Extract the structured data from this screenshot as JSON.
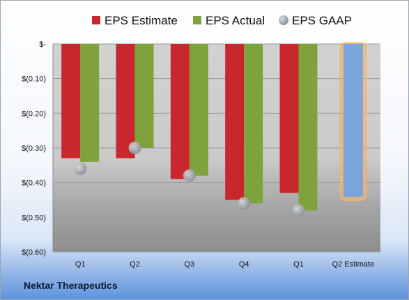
{
  "footer": {
    "company": "Nektar Therapeutics"
  },
  "chart_data": {
    "type": "bar",
    "categories": [
      "Q1",
      "Q2",
      "Q3",
      "Q4",
      "Q1",
      "Q2 Estimate"
    ],
    "series": [
      {
        "name": "EPS Estimate",
        "color": "#c8282d",
        "values": [
          -0.33,
          -0.33,
          -0.39,
          -0.45,
          -0.43,
          null
        ]
      },
      {
        "name": "EPS Actual",
        "color": "#7fa23c",
        "values": [
          -0.34,
          -0.3,
          -0.38,
          -0.46,
          -0.48,
          null
        ]
      },
      {
        "name": "EPS GAAP",
        "color": "#a9b0ba",
        "marker": "circle",
        "values": [
          -0.36,
          -0.3,
          -0.38,
          -0.46,
          -0.48,
          null
        ]
      }
    ],
    "forecast": {
      "category": "Q2 Estimate",
      "value": -0.44,
      "color": "#7aa4dc",
      "outline": "#f0b46e"
    },
    "y_ticks": [
      0,
      -0.1,
      -0.2,
      -0.3,
      -0.4,
      -0.5,
      -0.6
    ],
    "y_tick_labels": [
      "$-",
      "$(0.10)",
      "$(0.20)",
      "$(0.30)",
      "$(0.40)",
      "$(0.50)",
      "$(0.60)"
    ],
    "ylim": [
      -0.6,
      0
    ],
    "grid": true,
    "legend_position": "top"
  }
}
